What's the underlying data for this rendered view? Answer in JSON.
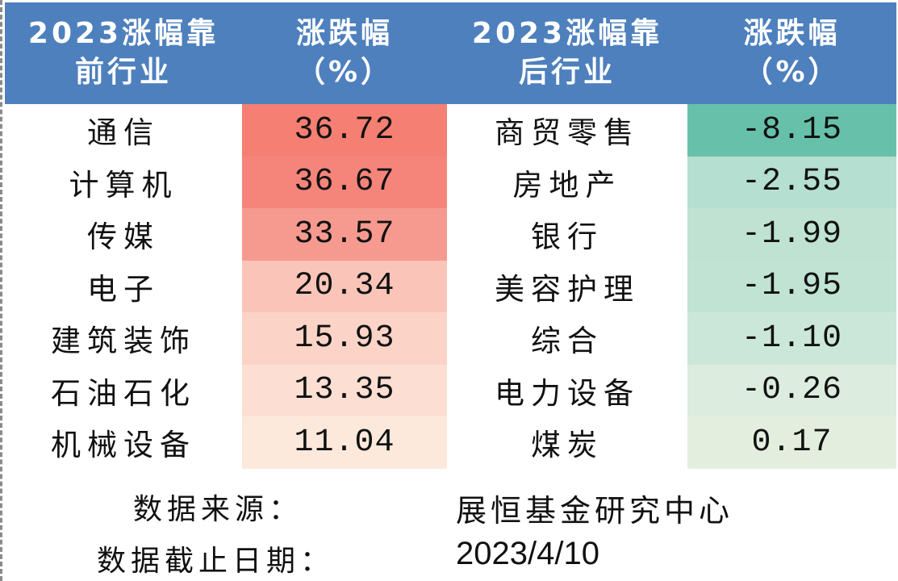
{
  "header": {
    "col1_line1": "2023涨幅靠",
    "col1_line2": "前行业",
    "col2_line1": "涨跌幅",
    "col2_line2": "（%）",
    "col3_line1": "2023涨幅靠",
    "col3_line2": "后行业",
    "col4_line1": "涨跌幅",
    "col4_line2": "（%）"
  },
  "rows": [
    {
      "top_industry": "通信",
      "top_change": "36.72",
      "bottom_industry": "商贸零售",
      "bottom_change": "-8.15"
    },
    {
      "top_industry": "计算机",
      "top_change": "36.67",
      "bottom_industry": "房地产",
      "bottom_change": "-2.55"
    },
    {
      "top_industry": "传媒",
      "top_change": "33.57",
      "bottom_industry": "银行",
      "bottom_change": "-1.99"
    },
    {
      "top_industry": "电子",
      "top_change": "20.34",
      "bottom_industry": "美容护理",
      "bottom_change": "-1.95"
    },
    {
      "top_industry": "建筑装饰",
      "top_change": "15.93",
      "bottom_industry": "综合",
      "bottom_change": "-1.10"
    },
    {
      "top_industry": "石油石化",
      "top_change": "13.35",
      "bottom_industry": "电力设备",
      "bottom_change": "-0.26"
    },
    {
      "top_industry": "机械设备",
      "top_change": "11.04",
      "bottom_industry": "煤炭",
      "bottom_change": "0.17"
    }
  ],
  "colors": {
    "header_bg": "#4e80bd",
    "top_change_fills": [
      "#f47f72",
      "#f5857a",
      "#f69a8f",
      "#fac5b8",
      "#fbd4c7",
      "#fcdfd2",
      "#fde9dc"
    ],
    "bottom_change_fills": [
      "#67c1aa",
      "#b5dfd0",
      "#bfe2d3",
      "#c0e3d4",
      "#cbe7d9",
      "#dcecdf",
      "#e3eedf"
    ]
  },
  "footer": {
    "source_label": "数据来源：",
    "source_value": "展恒基金研究中心",
    "date_label": "数据截止日期：",
    "date_value": "2023/4/10"
  }
}
